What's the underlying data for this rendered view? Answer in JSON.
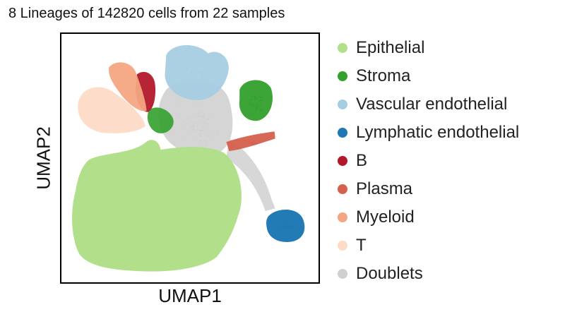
{
  "chart_data": {
    "type": "scatter",
    "title": "8 Lineages of 142820 cells from 22 samples",
    "xlabel": "UMAP1",
    "ylabel": "UMAP2",
    "legend_position": "right",
    "grid": false,
    "axis_ticks": false,
    "series": [
      {
        "name": "Epithelial",
        "color": "#b2df8a"
      },
      {
        "name": "Stroma",
        "color": "#33a02c"
      },
      {
        "name": "Vascular endothelial",
        "color": "#a6cee3"
      },
      {
        "name": "Lymphatic endothelial",
        "color": "#1f78b4"
      },
      {
        "name": "B",
        "color": "#b2182b"
      },
      {
        "name": "Plasma",
        "color": "#d6604d"
      },
      {
        "name": "Myeloid",
        "color": "#f4a582"
      },
      {
        "name": "T",
        "color": "#fddbc7"
      },
      {
        "name": "Doublets",
        "color": "#d0d0d0"
      }
    ]
  }
}
